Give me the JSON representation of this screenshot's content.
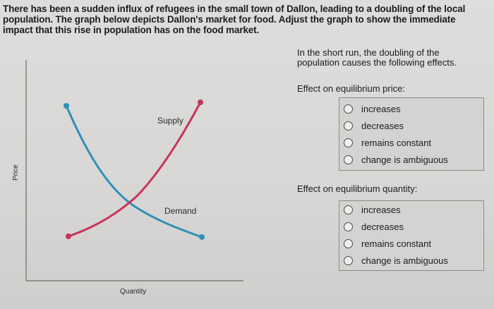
{
  "prompt": {
    "line1": "There has been a sudden influx of refugees in the small town of Dallon, leading to a doubling of the local",
    "line2": "population. The graph below depicts Dallon's market for food. Adjust the graph to show the immediate",
    "line3": "impact that this rise in population has on the food market."
  },
  "graph": {
    "y_axis_label": "Price",
    "x_axis_label": "Quantity",
    "supply_label": "Supply",
    "demand_label": "Demand",
    "supply_color": "#c8355a",
    "demand_color": "#2f8fb8"
  },
  "sidebar": {
    "intro_line1": "In the short run, the doubling of the",
    "intro_line2": "population causes the following effects.",
    "price_section": {
      "title": "Effect on equilibrium price:",
      "options": [
        "increases",
        "decreases",
        "remains constant",
        "change is ambiguous"
      ]
    },
    "quantity_section": {
      "title": "Effect on equilibrium quantity:",
      "options": [
        "increases",
        "decreases",
        "remains constant",
        "change is ambiguous"
      ]
    }
  }
}
